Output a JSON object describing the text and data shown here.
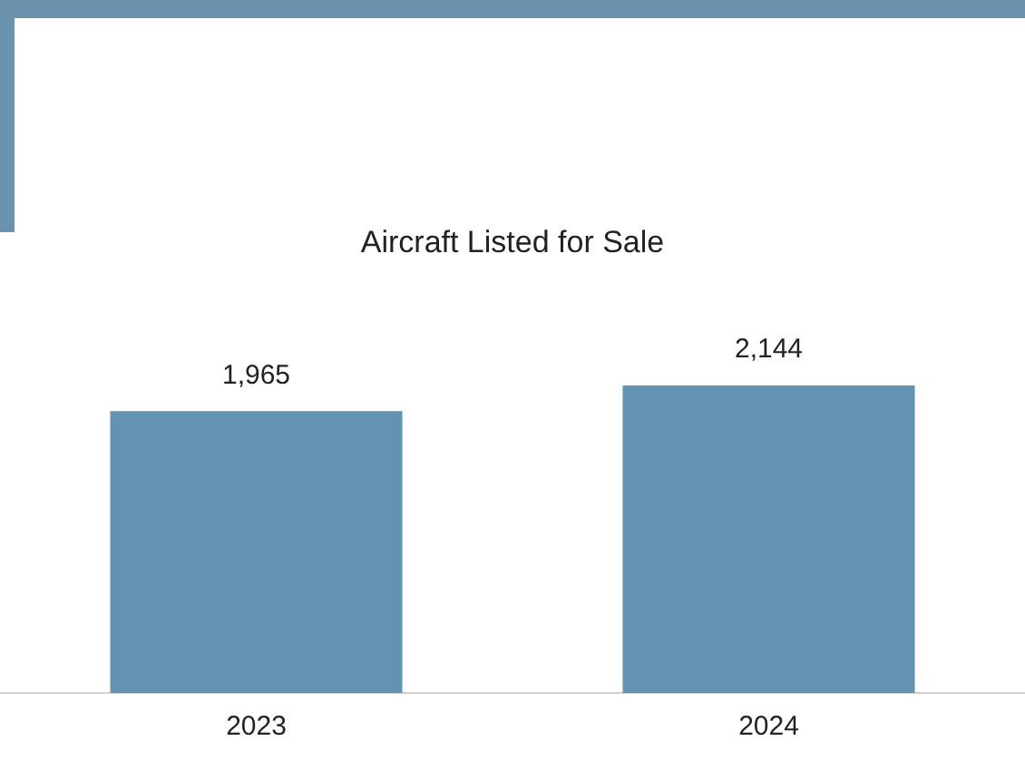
{
  "chart_data": {
    "type": "bar",
    "title": "Aircraft Listed for Sale",
    "categories": [
      "2023",
      "2024"
    ],
    "values": [
      1965,
      2144
    ],
    "value_labels": [
      "1,965",
      "2,144"
    ],
    "color": "#6493b1",
    "grid": false,
    "legend": false
  }
}
